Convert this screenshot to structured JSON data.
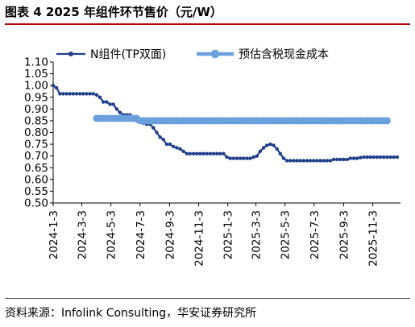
{
  "header": {
    "title": "图表 4  2025 年组件环节售价（元/W）"
  },
  "footer": {
    "source": "资料来源：Infolink Consulting，华安证券研究所"
  },
  "chart_data": {
    "type": "line",
    "title": "图表 4  2025 年组件环节售价（元/W）",
    "ylim": [
      0.5,
      1.1
    ],
    "yticks": [
      "0.50",
      "0.55",
      "0.60",
      "0.65",
      "0.70",
      "0.75",
      "0.80",
      "0.85",
      "0.90",
      "0.95",
      "1.00",
      "1.05",
      "1.10"
    ],
    "xlim": [
      "2024-01-03",
      "2025-12-31"
    ],
    "xticks": [
      "2024-1-3",
      "2024-3-3",
      "2024-5-3",
      "2024-7-3",
      "2024-9-3",
      "2024-11-3",
      "2025-1-3",
      "2025-3-3",
      "2025-5-3",
      "2025-7-3",
      "2025-9-3",
      "2025-11-3"
    ],
    "legend_position": "top",
    "grid": false,
    "series": [
      {
        "name": "N组件(TP双面)",
        "color": "#1f3f8c",
        "style": "line-with-markers",
        "points": [
          [
            "2024-01-03",
            1.0
          ],
          [
            "2024-01-10",
            0.99
          ],
          [
            "2024-01-17",
            0.965
          ],
          [
            "2024-01-24",
            0.965
          ],
          [
            "2024-01-31",
            0.965
          ],
          [
            "2024-02-07",
            0.965
          ],
          [
            "2024-02-14",
            0.965
          ],
          [
            "2024-02-21",
            0.965
          ],
          [
            "2024-02-28",
            0.965
          ],
          [
            "2024-03-06",
            0.965
          ],
          [
            "2024-03-13",
            0.965
          ],
          [
            "2024-03-20",
            0.965
          ],
          [
            "2024-03-27",
            0.965
          ],
          [
            "2024-04-03",
            0.96
          ],
          [
            "2024-04-10",
            0.95
          ],
          [
            "2024-04-17",
            0.93
          ],
          [
            "2024-04-24",
            0.93
          ],
          [
            "2024-05-01",
            0.92
          ],
          [
            "2024-05-08",
            0.92
          ],
          [
            "2024-05-15",
            0.9
          ],
          [
            "2024-05-22",
            0.885
          ],
          [
            "2024-05-29",
            0.875
          ],
          [
            "2024-06-05",
            0.875
          ],
          [
            "2024-06-12",
            0.875
          ],
          [
            "2024-06-19",
            0.86
          ],
          [
            "2024-06-26",
            0.85
          ],
          [
            "2024-07-03",
            0.85
          ],
          [
            "2024-07-10",
            0.84
          ],
          [
            "2024-07-17",
            0.835
          ],
          [
            "2024-07-24",
            0.835
          ],
          [
            "2024-07-31",
            0.82
          ],
          [
            "2024-08-07",
            0.8
          ],
          [
            "2024-08-14",
            0.78
          ],
          [
            "2024-08-21",
            0.77
          ],
          [
            "2024-08-28",
            0.75
          ],
          [
            "2024-09-04",
            0.75
          ],
          [
            "2024-09-11",
            0.74
          ],
          [
            "2024-09-18",
            0.735
          ],
          [
            "2024-09-25",
            0.73
          ],
          [
            "2024-10-02",
            0.72
          ],
          [
            "2024-10-09",
            0.71
          ],
          [
            "2024-10-16",
            0.71
          ],
          [
            "2024-10-23",
            0.71
          ],
          [
            "2024-10-30",
            0.71
          ],
          [
            "2024-11-06",
            0.71
          ],
          [
            "2024-11-13",
            0.71
          ],
          [
            "2024-11-20",
            0.71
          ],
          [
            "2024-11-27",
            0.71
          ],
          [
            "2024-12-04",
            0.71
          ],
          [
            "2024-12-11",
            0.71
          ],
          [
            "2024-12-18",
            0.71
          ],
          [
            "2024-12-25",
            0.71
          ],
          [
            "2025-01-01",
            0.695
          ],
          [
            "2025-01-08",
            0.69
          ],
          [
            "2025-01-15",
            0.69
          ],
          [
            "2025-01-22",
            0.69
          ],
          [
            "2025-01-29",
            0.69
          ],
          [
            "2025-02-05",
            0.69
          ],
          [
            "2025-02-12",
            0.69
          ],
          [
            "2025-02-19",
            0.69
          ],
          [
            "2025-02-26",
            0.695
          ],
          [
            "2025-03-05",
            0.7
          ],
          [
            "2025-03-12",
            0.72
          ],
          [
            "2025-03-19",
            0.735
          ],
          [
            "2025-03-26",
            0.745
          ],
          [
            "2025-04-02",
            0.75
          ],
          [
            "2025-04-09",
            0.745
          ],
          [
            "2025-04-16",
            0.73
          ],
          [
            "2025-04-23",
            0.71
          ],
          [
            "2025-04-30",
            0.69
          ],
          [
            "2025-05-07",
            0.68
          ],
          [
            "2025-05-14",
            0.68
          ],
          [
            "2025-05-21",
            0.68
          ],
          [
            "2025-05-28",
            0.68
          ],
          [
            "2025-06-04",
            0.68
          ],
          [
            "2025-06-11",
            0.68
          ],
          [
            "2025-06-18",
            0.68
          ],
          [
            "2025-06-25",
            0.68
          ],
          [
            "2025-07-02",
            0.68
          ],
          [
            "2025-07-09",
            0.68
          ],
          [
            "2025-07-16",
            0.68
          ],
          [
            "2025-07-23",
            0.68
          ],
          [
            "2025-07-30",
            0.68
          ],
          [
            "2025-08-06",
            0.68
          ],
          [
            "2025-08-13",
            0.685
          ],
          [
            "2025-08-20",
            0.685
          ],
          [
            "2025-08-27",
            0.685
          ],
          [
            "2025-09-03",
            0.685
          ],
          [
            "2025-09-10",
            0.685
          ],
          [
            "2025-09-17",
            0.69
          ],
          [
            "2025-09-24",
            0.69
          ],
          [
            "2025-10-01",
            0.69
          ],
          [
            "2025-10-08",
            0.693
          ],
          [
            "2025-10-15",
            0.695
          ],
          [
            "2025-10-22",
            0.695
          ],
          [
            "2025-10-29",
            0.695
          ],
          [
            "2025-11-05",
            0.695
          ],
          [
            "2025-11-12",
            0.695
          ],
          [
            "2025-11-19",
            0.695
          ],
          [
            "2025-11-26",
            0.695
          ],
          [
            "2025-12-03",
            0.695
          ],
          [
            "2025-12-10",
            0.695
          ],
          [
            "2025-12-17",
            0.695
          ],
          [
            "2025-12-24",
            0.695
          ]
        ]
      },
      {
        "name": "预估含税现金成本",
        "color": "#6aa0dc",
        "style": "line-with-markers",
        "points": [
          [
            "2024-04-03",
            0.86
          ],
          [
            "2024-04-10",
            0.86
          ],
          [
            "2024-04-17",
            0.86
          ],
          [
            "2024-04-24",
            0.86
          ],
          [
            "2024-05-01",
            0.86
          ],
          [
            "2024-05-08",
            0.86
          ],
          [
            "2024-05-15",
            0.86
          ],
          [
            "2024-05-22",
            0.86
          ],
          [
            "2024-05-29",
            0.86
          ],
          [
            "2024-06-05",
            0.86
          ],
          [
            "2024-06-12",
            0.86
          ],
          [
            "2024-06-19",
            0.86
          ],
          [
            "2024-06-26",
            0.86
          ],
          [
            "2024-07-03",
            0.85
          ],
          [
            "2024-07-10",
            0.85
          ],
          [
            "2024-07-17",
            0.85
          ],
          [
            "2024-07-24",
            0.85
          ],
          [
            "2024-07-31",
            0.85
          ],
          [
            "2024-08-07",
            0.85
          ],
          [
            "2024-08-14",
            0.85
          ],
          [
            "2024-08-21",
            0.85
          ],
          [
            "2024-08-28",
            0.85
          ],
          [
            "2024-09-04",
            0.85
          ],
          [
            "2024-09-11",
            0.85
          ],
          [
            "2024-09-18",
            0.85
          ],
          [
            "2024-09-25",
            0.85
          ],
          [
            "2024-10-02",
            0.85
          ],
          [
            "2024-10-09",
            0.85
          ],
          [
            "2024-10-16",
            0.85
          ],
          [
            "2024-10-23",
            0.85
          ],
          [
            "2024-10-30",
            0.85
          ],
          [
            "2024-11-06",
            0.85
          ],
          [
            "2024-11-13",
            0.85
          ],
          [
            "2024-11-20",
            0.85
          ],
          [
            "2024-11-27",
            0.85
          ],
          [
            "2024-12-04",
            0.85
          ],
          [
            "2024-12-11",
            0.85
          ],
          [
            "2024-12-18",
            0.85
          ],
          [
            "2024-12-25",
            0.85
          ],
          [
            "2025-01-01",
            0.85
          ],
          [
            "2025-01-08",
            0.85
          ],
          [
            "2025-01-15",
            0.85
          ],
          [
            "2025-01-22",
            0.85
          ],
          [
            "2025-01-29",
            0.85
          ],
          [
            "2025-02-05",
            0.85
          ],
          [
            "2025-02-12",
            0.85
          ],
          [
            "2025-02-19",
            0.85
          ],
          [
            "2025-02-26",
            0.85
          ],
          [
            "2025-03-05",
            0.85
          ],
          [
            "2025-03-12",
            0.85
          ],
          [
            "2025-03-19",
            0.85
          ],
          [
            "2025-03-26",
            0.85
          ],
          [
            "2025-04-02",
            0.85
          ],
          [
            "2025-04-09",
            0.85
          ],
          [
            "2025-04-16",
            0.85
          ],
          [
            "2025-04-23",
            0.85
          ],
          [
            "2025-04-30",
            0.85
          ],
          [
            "2025-05-07",
            0.85
          ],
          [
            "2025-05-14",
            0.85
          ],
          [
            "2025-05-21",
            0.85
          ],
          [
            "2025-05-28",
            0.85
          ],
          [
            "2025-06-04",
            0.85
          ],
          [
            "2025-06-11",
            0.85
          ],
          [
            "2025-06-18",
            0.85
          ],
          [
            "2025-06-25",
            0.85
          ],
          [
            "2025-07-02",
            0.85
          ],
          [
            "2025-07-09",
            0.85
          ],
          [
            "2025-07-16",
            0.85
          ],
          [
            "2025-07-23",
            0.85
          ],
          [
            "2025-07-30",
            0.85
          ],
          [
            "2025-08-06",
            0.85
          ],
          [
            "2025-08-13",
            0.85
          ],
          [
            "2025-08-20",
            0.85
          ],
          [
            "2025-08-27",
            0.85
          ],
          [
            "2025-09-03",
            0.85
          ],
          [
            "2025-09-10",
            0.85
          ],
          [
            "2025-09-17",
            0.85
          ],
          [
            "2025-09-24",
            0.85
          ],
          [
            "2025-10-01",
            0.85
          ],
          [
            "2025-10-08",
            0.85
          ],
          [
            "2025-10-15",
            0.85
          ],
          [
            "2025-10-22",
            0.85
          ],
          [
            "2025-10-29",
            0.85
          ],
          [
            "2025-11-05",
            0.85
          ],
          [
            "2025-11-12",
            0.85
          ],
          [
            "2025-11-19",
            0.85
          ],
          [
            "2025-11-26",
            0.85
          ],
          [
            "2025-12-03",
            0.85
          ]
        ]
      }
    ]
  }
}
